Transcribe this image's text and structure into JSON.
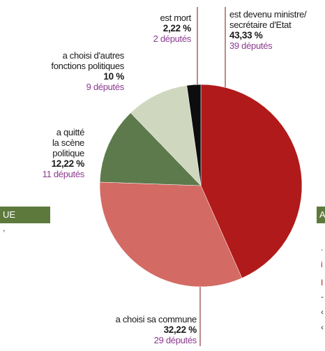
{
  "colors": {
    "minister": "#b11a1a",
    "commune": "#d46a64",
    "left_politics": "#5d7a4c",
    "other_functions": "#cfd8bf",
    "dead": "#0d0d0d",
    "count_text": "#8b3a8f",
    "band": "#5d7a3c"
  },
  "chart_data": {
    "type": "pie",
    "slices": [
      {
        "label": "est devenu ministre/\nsecrétaire d'Etat",
        "percent_label": "43,33 %",
        "count_label": "39 députés",
        "value": 43.33,
        "count": 39,
        "color_key": "minister"
      },
      {
        "label": "a choisi sa commune",
        "percent_label": "32,22 %",
        "count_label": "29 députés",
        "value": 32.22,
        "count": 29,
        "color_key": "commune"
      },
      {
        "label": "a quitté\nla scène\npolitique",
        "percent_label": "12,22 %",
        "count_label": "11 députés",
        "value": 12.22,
        "count": 11,
        "color_key": "left_politics"
      },
      {
        "label": "a choisi d'autres\nfonctions politiques",
        "percent_label": "10 %",
        "count_label": "9 députés",
        "value": 10,
        "count": 9,
        "color_key": "other_functions"
      },
      {
        "label": "est mort",
        "percent_label": "2,22 %",
        "count_label": "2 députés",
        "value": 2.22,
        "count": 2,
        "color_key": "dead"
      }
    ],
    "start": "top",
    "direction": "clockwise"
  },
  "side_fragments": {
    "left_band": "UE",
    "left_text": ",",
    "right_band": "A",
    "right_letters": [
      ".",
      "i",
      "I",
      "-",
      "‹",
      "‹"
    ]
  }
}
